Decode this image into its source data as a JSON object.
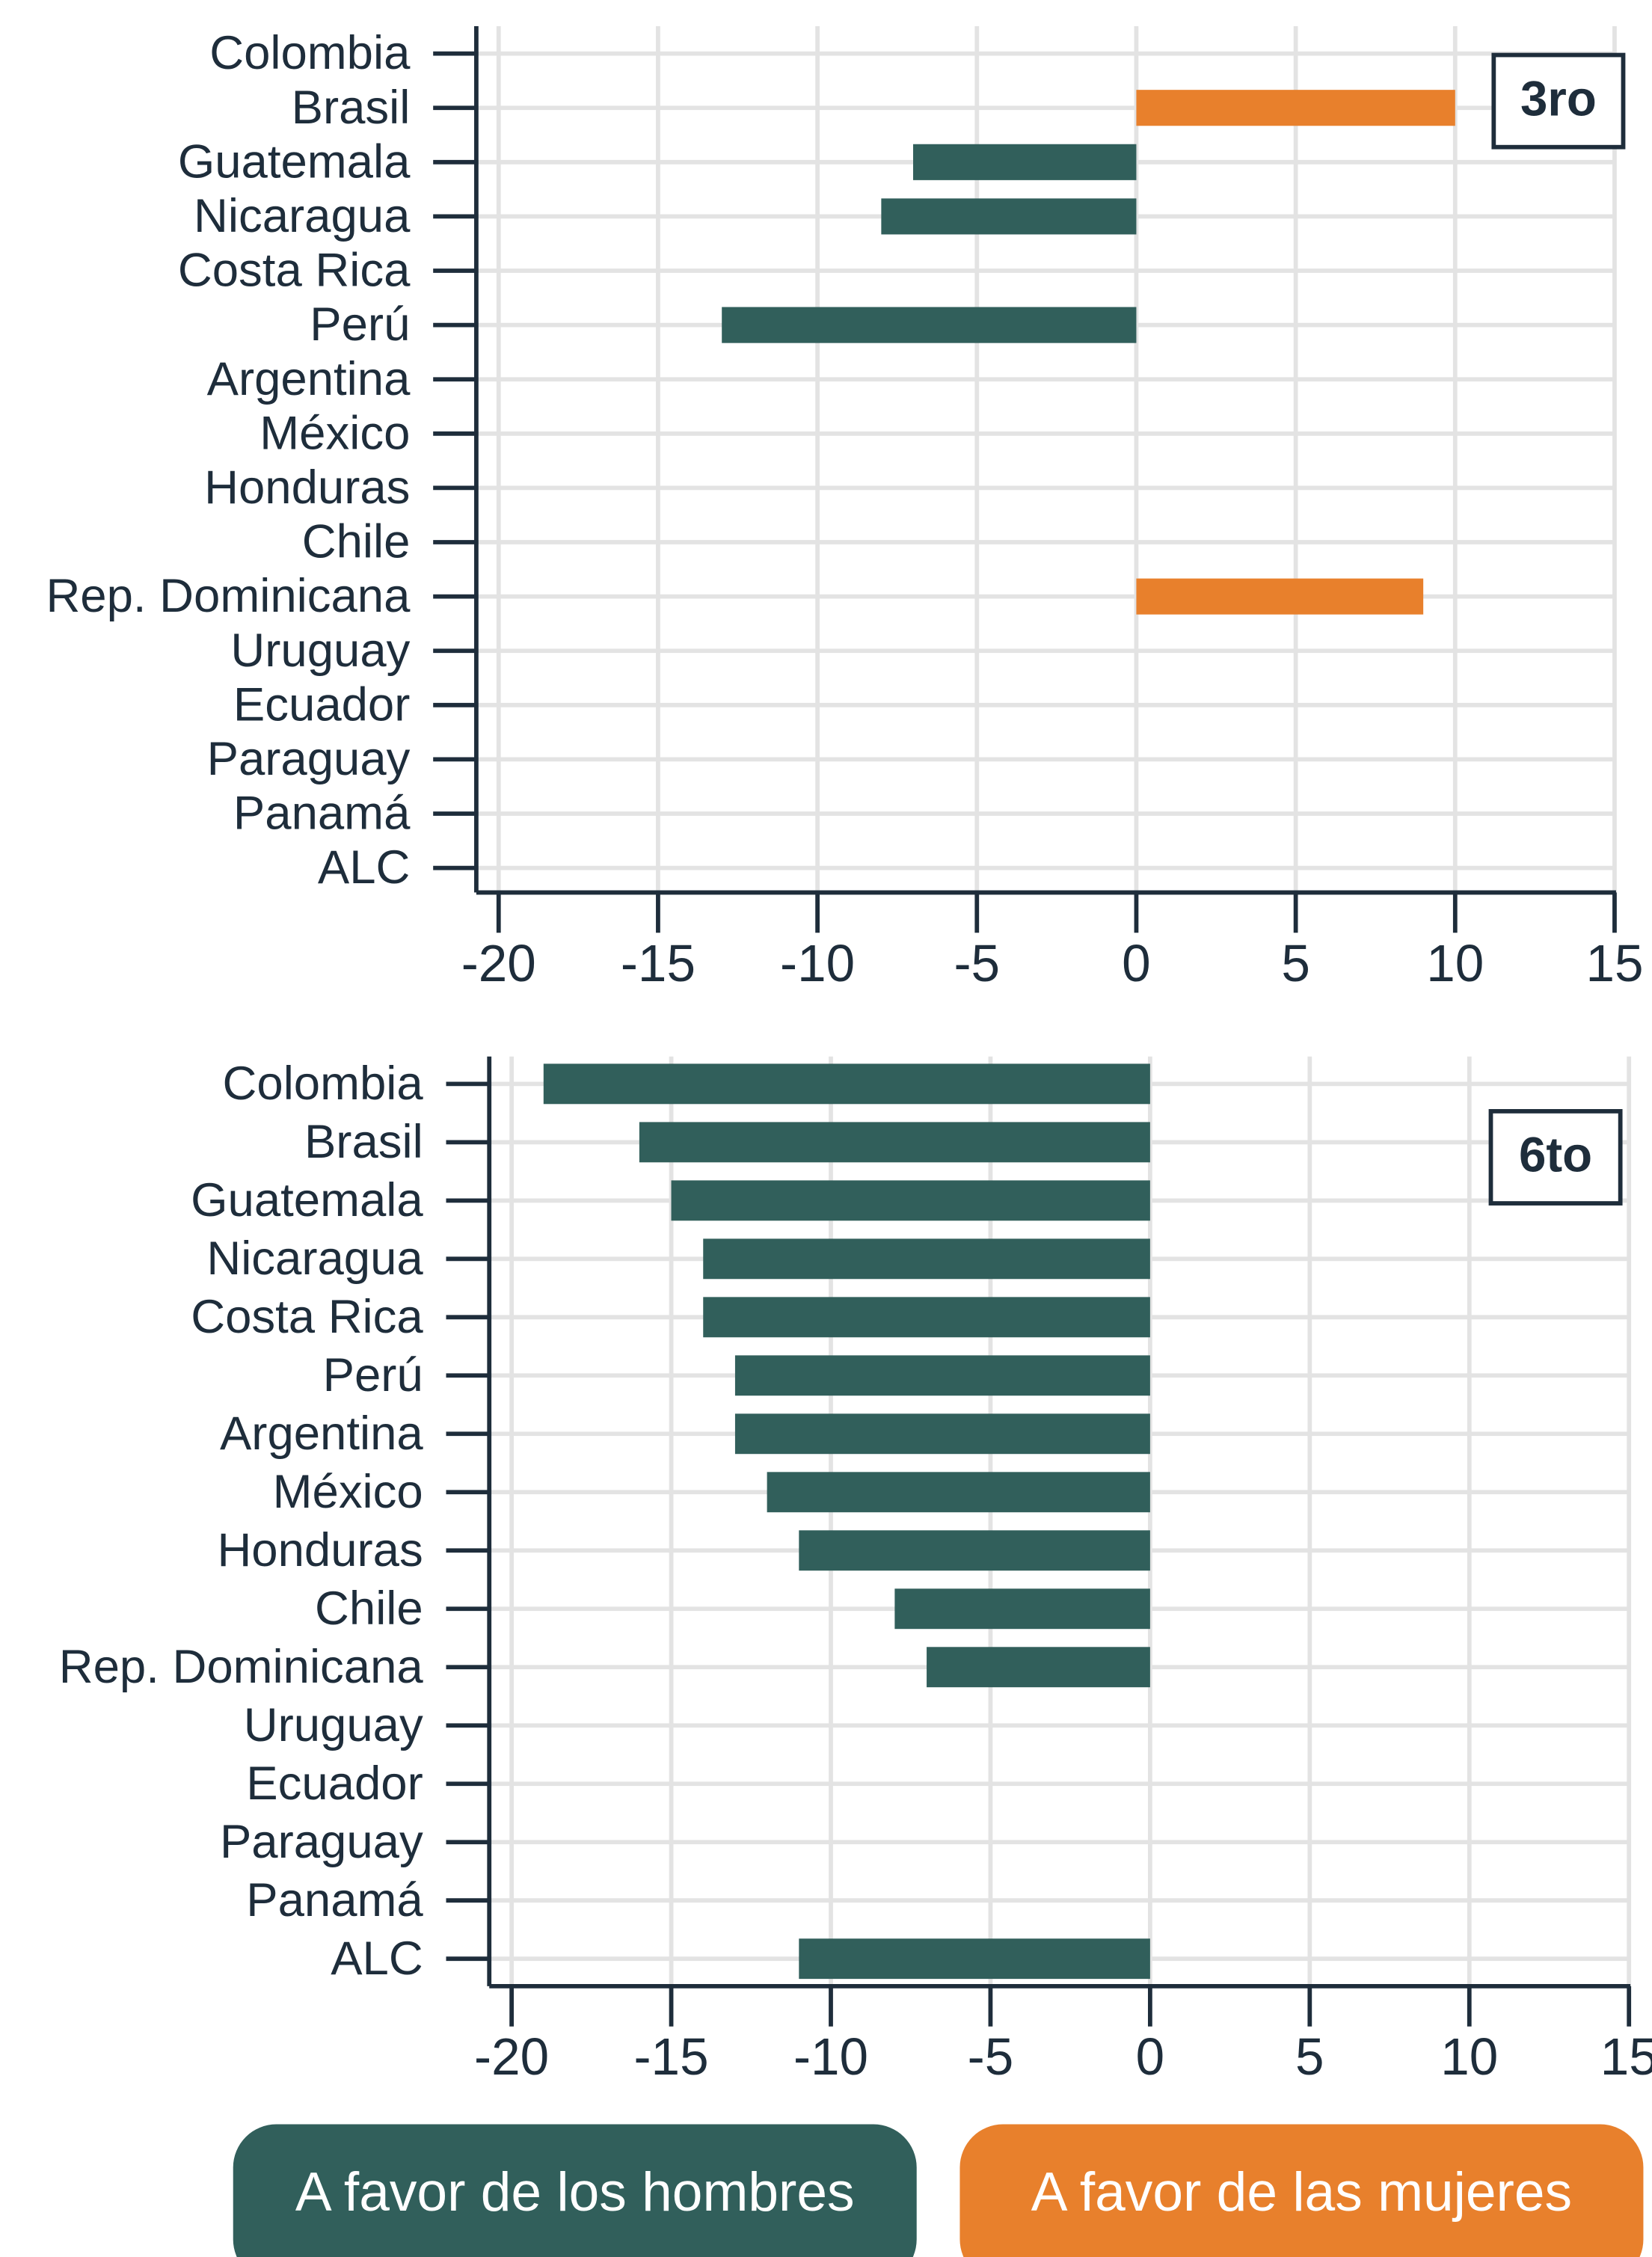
{
  "chart_data": [
    {
      "type": "bar",
      "orientation": "horizontal",
      "panel_label": "3ro",
      "categories": [
        "Colombia",
        "Brasil",
        "Guatemala",
        "Nicaragua",
        "Costa Rica",
        "Perú",
        "Argentina",
        "México",
        "Honduras",
        "Chile",
        "Rep. Dominicana",
        "Uruguay",
        "Ecuador",
        "Paraguay",
        "Panamá",
        "ALC"
      ],
      "values": [
        null,
        10,
        -7,
        -8,
        null,
        -13,
        null,
        null,
        null,
        null,
        9,
        null,
        null,
        null,
        null,
        null
      ],
      "xlim": [
        -20.7,
        15
      ],
      "xticks": [
        -20,
        -15,
        -10,
        -5,
        0,
        5,
        10,
        15
      ],
      "grid": true
    },
    {
      "type": "bar",
      "orientation": "horizontal",
      "panel_label": "6to",
      "categories": [
        "Colombia",
        "Brasil",
        "Guatemala",
        "Nicaragua",
        "Costa Rica",
        "Perú",
        "Argentina",
        "México",
        "Honduras",
        "Chile",
        "Rep. Dominicana",
        "Uruguay",
        "Ecuador",
        "Paraguay",
        "Panamá",
        "ALC"
      ],
      "values": [
        -19,
        -16,
        -15,
        -14,
        -14,
        -13,
        -13,
        -12,
        -11,
        -8,
        -7,
        null,
        null,
        null,
        null,
        -11
      ],
      "xlim": [
        -20.7,
        15
      ],
      "xticks": [
        -20,
        -15,
        -10,
        -5,
        0,
        5,
        10,
        15
      ],
      "grid": true
    }
  ],
  "legend": [
    {
      "label": "A favor de los hombres",
      "color": "#315f5b"
    },
    {
      "label": "A favor de las mujeres",
      "color": "#e8802c"
    }
  ]
}
